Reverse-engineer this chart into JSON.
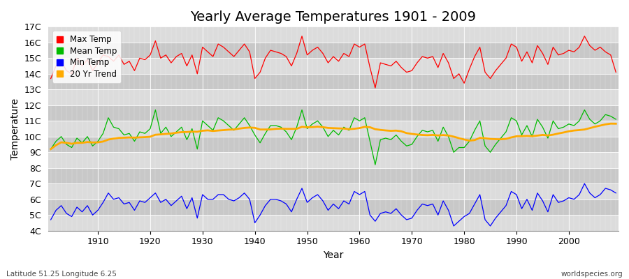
{
  "title": "Yearly Average Temperatures 1901 - 2009",
  "xlabel": "Year",
  "ylabel": "Temperature",
  "bottom_left": "Latitude 51.25 Longitude 6.25",
  "bottom_right": "worldspecies.org",
  "years": [
    1901,
    1902,
    1903,
    1904,
    1905,
    1906,
    1907,
    1908,
    1909,
    1910,
    1911,
    1912,
    1913,
    1914,
    1915,
    1916,
    1917,
    1918,
    1919,
    1920,
    1921,
    1922,
    1923,
    1924,
    1925,
    1926,
    1927,
    1928,
    1929,
    1930,
    1931,
    1932,
    1933,
    1934,
    1935,
    1936,
    1937,
    1938,
    1939,
    1940,
    1941,
    1942,
    1943,
    1944,
    1945,
    1946,
    1947,
    1948,
    1949,
    1950,
    1951,
    1952,
    1953,
    1954,
    1955,
    1956,
    1957,
    1958,
    1959,
    1960,
    1961,
    1962,
    1963,
    1964,
    1965,
    1966,
    1967,
    1968,
    1969,
    1970,
    1971,
    1972,
    1973,
    1974,
    1975,
    1976,
    1977,
    1978,
    1979,
    1980,
    1981,
    1982,
    1983,
    1984,
    1985,
    1986,
    1987,
    1988,
    1989,
    1990,
    1991,
    1992,
    1993,
    1994,
    1995,
    1996,
    1997,
    1998,
    1999,
    2000,
    2001,
    2002,
    2003,
    2004,
    2005,
    2006,
    2007,
    2008,
    2009
  ],
  "max_temp": [
    13.7,
    14.5,
    14.8,
    14.2,
    14.0,
    15.0,
    14.5,
    14.9,
    14.2,
    14.7,
    15.2,
    15.1,
    14.8,
    15.2,
    14.6,
    14.8,
    14.2,
    15.0,
    14.9,
    15.2,
    16.1,
    15.0,
    15.2,
    14.7,
    15.1,
    15.3,
    14.5,
    15.2,
    14.0,
    15.7,
    15.4,
    15.1,
    15.9,
    15.7,
    15.4,
    15.1,
    15.5,
    15.9,
    15.4,
    13.7,
    14.1,
    15.0,
    15.5,
    15.4,
    15.3,
    15.1,
    14.5,
    15.3,
    16.4,
    15.2,
    15.5,
    15.7,
    15.3,
    14.7,
    15.1,
    14.8,
    15.3,
    15.1,
    15.9,
    15.7,
    15.9,
    14.4,
    13.1,
    14.7,
    14.6,
    14.5,
    14.8,
    14.4,
    14.1,
    14.2,
    14.7,
    15.1,
    15.0,
    15.1,
    14.4,
    15.3,
    14.7,
    13.7,
    14.0,
    13.4,
    14.3,
    15.1,
    15.7,
    14.1,
    13.7,
    14.2,
    14.6,
    15.0,
    15.9,
    15.7,
    14.8,
    15.4,
    14.7,
    15.8,
    15.3,
    14.6,
    15.7,
    15.2,
    15.3,
    15.5,
    15.4,
    15.7,
    16.4,
    15.8,
    15.5,
    15.7,
    15.4,
    15.2,
    14.1
  ],
  "mean_temp": [
    9.2,
    9.7,
    10.0,
    9.5,
    9.3,
    9.9,
    9.6,
    10.0,
    9.4,
    9.7,
    10.2,
    11.2,
    10.6,
    10.5,
    10.1,
    10.2,
    9.7,
    10.3,
    10.2,
    10.5,
    11.7,
    10.2,
    10.6,
    10.0,
    10.3,
    10.6,
    9.8,
    10.5,
    9.2,
    11.0,
    10.7,
    10.4,
    11.2,
    11.0,
    10.7,
    10.4,
    10.8,
    11.2,
    10.7,
    10.1,
    9.6,
    10.2,
    10.7,
    10.7,
    10.6,
    10.3,
    9.8,
    10.6,
    11.7,
    10.5,
    10.8,
    11.0,
    10.6,
    10.0,
    10.4,
    10.1,
    10.6,
    10.4,
    11.2,
    11.0,
    11.2,
    9.7,
    8.2,
    9.8,
    9.9,
    9.8,
    10.1,
    9.7,
    9.4,
    9.5,
    10.0,
    10.4,
    10.3,
    10.4,
    9.7,
    10.6,
    10.0,
    9.0,
    9.3,
    9.3,
    9.7,
    10.4,
    11.0,
    9.4,
    9.0,
    9.5,
    9.9,
    10.3,
    11.2,
    11.0,
    10.1,
    10.7,
    10.0,
    11.1,
    10.6,
    9.9,
    11.0,
    10.5,
    10.6,
    10.8,
    10.7,
    11.0,
    11.7,
    11.1,
    10.8,
    11.0,
    11.4,
    11.3,
    11.1
  ],
  "min_temp": [
    4.7,
    5.3,
    5.6,
    5.1,
    4.9,
    5.5,
    5.2,
    5.6,
    5.0,
    5.3,
    5.8,
    6.4,
    6.0,
    6.1,
    5.7,
    5.8,
    5.3,
    5.9,
    5.8,
    6.1,
    6.4,
    5.8,
    6.0,
    5.6,
    5.9,
    6.2,
    5.4,
    6.1,
    4.8,
    6.3,
    6.0,
    6.0,
    6.3,
    6.3,
    6.0,
    5.9,
    6.1,
    6.4,
    6.0,
    4.5,
    5.0,
    5.6,
    6.0,
    6.0,
    5.9,
    5.7,
    5.2,
    6.0,
    6.7,
    5.8,
    6.1,
    6.3,
    5.9,
    5.3,
    5.7,
    5.4,
    5.9,
    5.7,
    6.5,
    6.3,
    6.5,
    5.0,
    4.6,
    5.1,
    5.2,
    5.1,
    5.4,
    5.0,
    4.7,
    4.8,
    5.3,
    5.7,
    5.6,
    5.7,
    5.0,
    5.9,
    5.3,
    4.3,
    4.6,
    4.9,
    5.1,
    5.7,
    6.3,
    4.7,
    4.3,
    4.8,
    5.2,
    5.6,
    6.5,
    6.3,
    5.4,
    6.0,
    5.3,
    6.4,
    5.9,
    5.2,
    6.3,
    5.8,
    5.9,
    6.1,
    6.0,
    6.3,
    7.0,
    6.4,
    6.1,
    6.3,
    6.7,
    6.6,
    6.4
  ],
  "max_color": "#ff0000",
  "mean_color": "#00bb00",
  "min_color": "#0000ff",
  "trend_color": "#ffaa00",
  "bg_light": "#dcdcdc",
  "bg_dark": "#c8c8c8",
  "grid_color": "#ffffff",
  "page_bg": "#ffffff",
  "ylim": [
    4,
    17
  ],
  "yticks": [
    4,
    5,
    6,
    7,
    8,
    9,
    10,
    11,
    12,
    13,
    14,
    15,
    16,
    17
  ],
  "ytick_labels": [
    "4C",
    "5C",
    "6C",
    "7C",
    "8C",
    "9C",
    "10C",
    "11C",
    "12C",
    "13C",
    "14C",
    "15C",
    "16C",
    "17C"
  ],
  "xticks": [
    1910,
    1920,
    1930,
    1940,
    1950,
    1960,
    1970,
    1980,
    1990,
    2000
  ],
  "title_fontsize": 14,
  "axis_fontsize": 9,
  "legend_fontsize": 8.5
}
